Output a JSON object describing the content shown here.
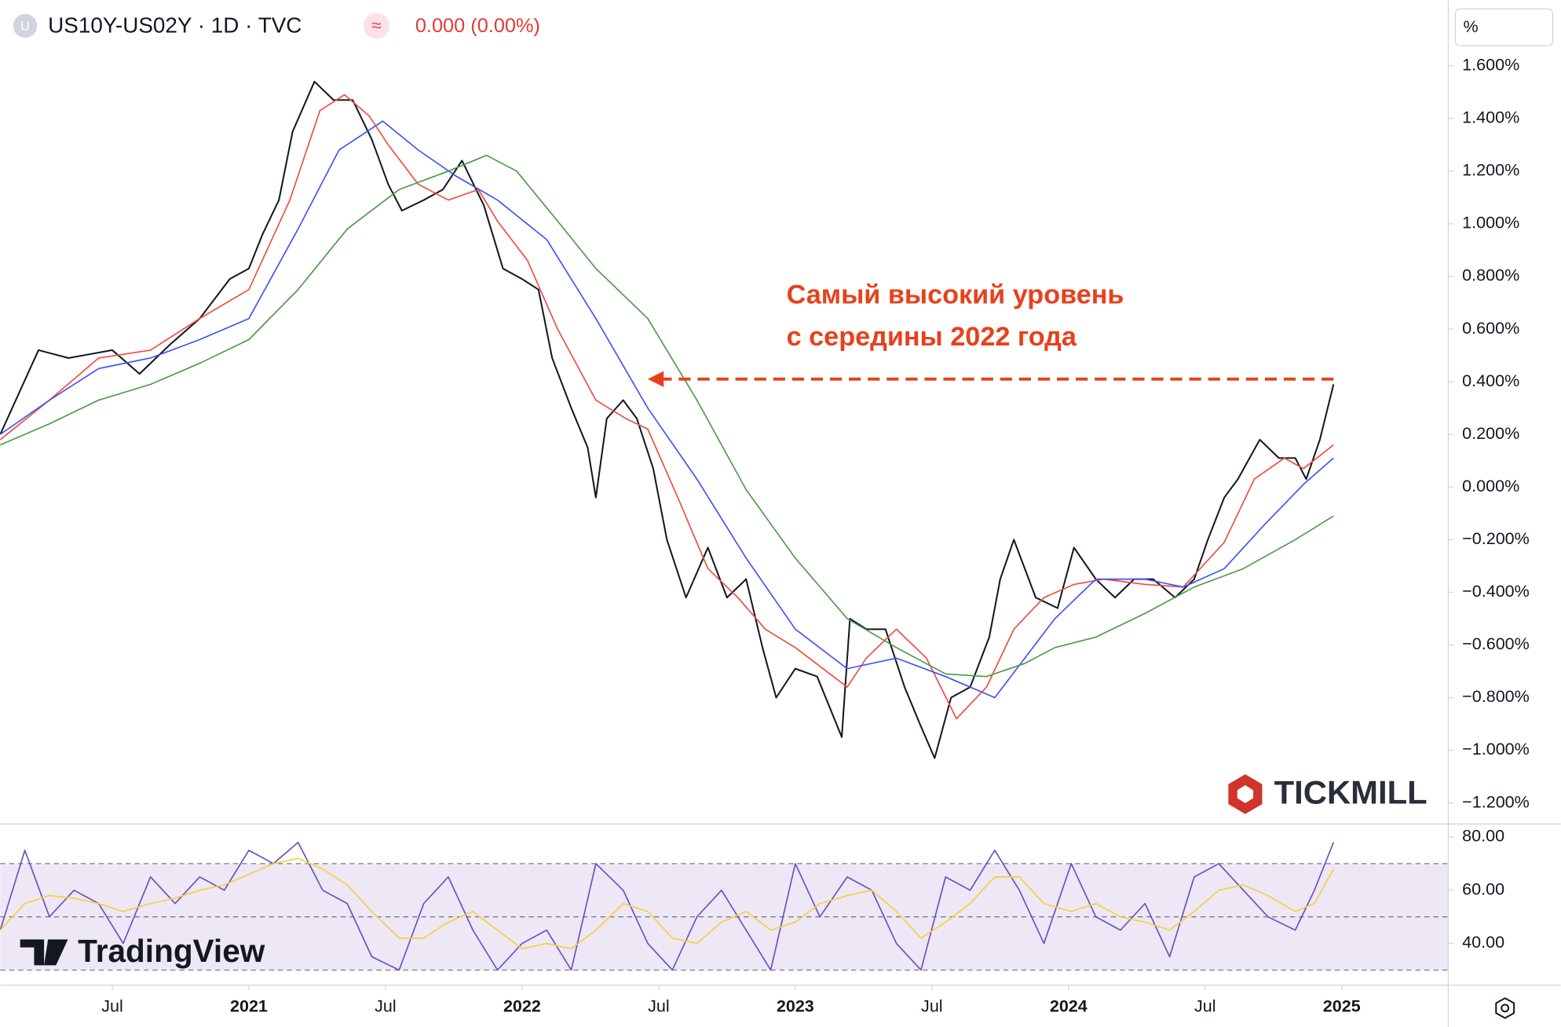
{
  "header": {
    "icon": "U",
    "symbol_icon": "≈"
  },
  "chart_data": [
    {
      "type": "line",
      "title": "US10Y-US02Y · 1D · TVC",
      "change": "0.000 (0.00%)",
      "y_label": "%",
      "xlim": [
        2020.09,
        2025.39
      ],
      "ylim": [
        -1.28,
        1.85
      ],
      "xticks": [
        {
          "value": 2020.5,
          "label": "Jul"
        },
        2021,
        {
          "value": 2021.5,
          "label": "Jul"
        },
        2022,
        {
          "value": 2022.5,
          "label": "Jul"
        },
        2023,
        {
          "value": 2023.5,
          "label": "Jul"
        },
        2024,
        {
          "value": 2024.5,
          "label": "Jul"
        },
        2025
      ],
      "yticks": [
        {
          "value": 1.6,
          "label": "1.600%"
        },
        {
          "value": 1.4,
          "label": "1.400%"
        },
        {
          "value": 1.2,
          "label": "1.200%"
        },
        {
          "value": 1.0,
          "label": "1.000%"
        },
        {
          "value": 0.8,
          "label": "0.800%"
        },
        {
          "value": 0.6,
          "label": "0.600%"
        },
        {
          "value": 0.4,
          "label": "0.400%"
        },
        {
          "value": 0.2,
          "label": "0.200%"
        },
        {
          "value": 0,
          "label": "0.000%"
        },
        {
          "value": -0.2,
          "label": "−0.200%"
        },
        {
          "value": -0.4,
          "label": "−0.400%"
        },
        {
          "value": -0.6,
          "label": "−0.600%"
        },
        {
          "value": -0.8,
          "label": "−0.800%"
        },
        {
          "value": -1.0,
          "label": "−1.000%"
        },
        {
          "value": -1.2,
          "label": "−1.200%"
        }
      ],
      "grid": false,
      "series": [
        {
          "color": "#131722",
          "width": 1.6,
          "x": [
            2020.09,
            2020.23,
            2020.34,
            2020.5,
            2020.6,
            2020.71,
            2020.82,
            2020.93,
            2021.0,
            2021.05,
            2021.11,
            2021.16,
            2021.24,
            2021.31,
            2021.38,
            2021.45,
            2021.51,
            2021.56,
            2021.64,
            2021.71,
            2021.78,
            2021.86,
            2021.93,
            2022.0,
            2022.06,
            2022.11,
            2022.18,
            2022.24,
            2022.27,
            2022.31,
            2022.37,
            2022.42,
            2022.48,
            2022.53,
            2022.6,
            2022.68,
            2022.75,
            2022.82,
            2022.88,
            2022.93,
            2023.0,
            2023.08,
            2023.17,
            2023.2,
            2023.26,
            2023.33,
            2023.4,
            2023.46,
            2023.51,
            2023.57,
            2023.64,
            2023.71,
            2023.75,
            2023.8,
            2023.88,
            2023.96,
            2024.02,
            2024.1,
            2024.17,
            2024.24,
            2024.31,
            2024.39,
            2024.46,
            2024.51,
            2024.57,
            2024.62,
            2024.7,
            2024.77,
            2024.83,
            2024.87,
            2024.92,
            2024.97
          ],
          "values": [
            0.2,
            0.52,
            0.49,
            0.52,
            0.43,
            0.54,
            0.64,
            0.79,
            0.83,
            0.96,
            1.09,
            1.35,
            1.54,
            1.47,
            1.47,
            1.32,
            1.15,
            1.05,
            1.09,
            1.13,
            1.24,
            1.07,
            0.83,
            0.79,
            0.75,
            0.49,
            0.3,
            0.15,
            -0.04,
            0.26,
            0.33,
            0.26,
            0.07,
            -0.2,
            -0.42,
            -0.23,
            -0.42,
            -0.35,
            -0.61,
            -0.8,
            -0.69,
            -0.72,
            -0.95,
            -0.5,
            -0.54,
            -0.54,
            -0.76,
            -0.91,
            -1.03,
            -0.8,
            -0.76,
            -0.57,
            -0.35,
            -0.2,
            -0.42,
            -0.46,
            -0.23,
            -0.35,
            -0.42,
            -0.35,
            -0.35,
            -0.42,
            -0.35,
            -0.2,
            -0.04,
            0.03,
            0.18,
            0.11,
            0.11,
            0.03,
            0.18,
            0.39
          ]
        },
        {
          "color": "#ef4b3f",
          "width": 1.3,
          "x": [
            2020.09,
            2020.27,
            2020.45,
            2020.64,
            2020.82,
            2021.0,
            2021.15,
            2021.26,
            2021.35,
            2021.44,
            2021.51,
            2021.62,
            2021.73,
            2021.84,
            2021.91,
            2022.02,
            2022.13,
            2022.27,
            2022.38,
            2022.46,
            2022.57,
            2022.68,
            2022.79,
            2022.89,
            2023.0,
            2023.19,
            2023.26,
            2023.37,
            2023.48,
            2023.59,
            2023.7,
            2023.8,
            2023.91,
            2024.02,
            2024.13,
            2024.28,
            2024.42,
            2024.57,
            2024.68,
            2024.79,
            2024.86,
            2024.97
          ],
          "values": [
            0.18,
            0.33,
            0.49,
            0.52,
            0.64,
            0.75,
            1.09,
            1.43,
            1.49,
            1.41,
            1.3,
            1.15,
            1.09,
            1.13,
            1.01,
            0.86,
            0.6,
            0.33,
            0.26,
            0.22,
            -0.04,
            -0.31,
            -0.42,
            -0.54,
            -0.61,
            -0.76,
            -0.65,
            -0.54,
            -0.65,
            -0.88,
            -0.76,
            -0.54,
            -0.42,
            -0.37,
            -0.35,
            -0.37,
            -0.38,
            -0.21,
            0.03,
            0.11,
            0.07,
            0.16
          ]
        },
        {
          "color": "#3f51f5",
          "width": 1.3,
          "x": [
            2020.09,
            2020.27,
            2020.45,
            2020.64,
            2020.82,
            2021.0,
            2021.18,
            2021.33,
            2021.49,
            2021.62,
            2021.76,
            2021.91,
            2022.09,
            2022.27,
            2022.46,
            2022.64,
            2022.82,
            2023.0,
            2023.19,
            2023.37,
            2023.55,
            2023.73,
            2023.84,
            2023.95,
            2024.1,
            2024.28,
            2024.42,
            2024.57,
            2024.72,
            2024.86,
            2024.97
          ],
          "values": [
            0.2,
            0.33,
            0.45,
            0.49,
            0.56,
            0.64,
            0.98,
            1.28,
            1.39,
            1.28,
            1.18,
            1.09,
            0.94,
            0.64,
            0.3,
            0.03,
            -0.27,
            -0.54,
            -0.69,
            -0.65,
            -0.72,
            -0.8,
            -0.65,
            -0.5,
            -0.35,
            -0.35,
            -0.38,
            -0.31,
            -0.14,
            0.01,
            0.11
          ]
        },
        {
          "color": "#4c9a45",
          "width": 1.3,
          "x": [
            2020.09,
            2020.27,
            2020.45,
            2020.64,
            2020.82,
            2021.0,
            2021.18,
            2021.36,
            2021.55,
            2021.73,
            2021.87,
            2021.98,
            2022.13,
            2022.27,
            2022.46,
            2022.64,
            2022.82,
            2023.0,
            2023.19,
            2023.37,
            2023.55,
            2023.7,
            2023.84,
            2023.95,
            2024.1,
            2024.28,
            2024.46,
            2024.64,
            2024.83,
            2024.97
          ],
          "values": [
            0.16,
            0.24,
            0.33,
            0.39,
            0.47,
            0.56,
            0.75,
            0.98,
            1.13,
            1.2,
            1.26,
            1.2,
            1.01,
            0.83,
            0.64,
            0.33,
            -0.01,
            -0.27,
            -0.5,
            -0.61,
            -0.71,
            -0.72,
            -0.67,
            -0.61,
            -0.57,
            -0.48,
            -0.38,
            -0.31,
            -0.2,
            -0.11
          ]
        }
      ],
      "annotation": {
        "text": [
          "Самый высокий уровень",
          "с середины 2022 года"
        ],
        "color": "#e8401c",
        "level": 0.41,
        "from": 2024.97,
        "to": 2022.46
      }
    },
    {
      "type": "line",
      "ylim": [
        24.3,
        84.9
      ],
      "yticks": [
        {
          "value": 80,
          "label": "80.00"
        },
        {
          "value": 60,
          "label": "60.00"
        },
        {
          "value": 40,
          "label": "40.00"
        }
      ],
      "levels": [
        70,
        50,
        30
      ],
      "band_color": "#ede7f6",
      "x": [
        2020.09,
        2020.18,
        2020.27,
        2020.36,
        2020.45,
        2020.54,
        2020.64,
        2020.73,
        2020.82,
        2020.91,
        2021.0,
        2021.09,
        2021.18,
        2021.27,
        2021.36,
        2021.45,
        2021.55,
        2021.64,
        2021.73,
        2021.82,
        2021.91,
        2022.0,
        2022.09,
        2022.18,
        2022.27,
        2022.37,
        2022.46,
        2022.55,
        2022.64,
        2022.73,
        2022.82,
        2022.91,
        2023.0,
        2023.09,
        2023.19,
        2023.28,
        2023.37,
        2023.46,
        2023.55,
        2023.64,
        2023.73,
        2023.82,
        2023.91,
        2024.01,
        2024.1,
        2024.19,
        2024.28,
        2024.37,
        2024.46,
        2024.55,
        2024.64,
        2024.73,
        2024.83,
        2024.9,
        2024.97
      ],
      "series": [
        {
          "color": "#6a4fbf",
          "width": 1.3,
          "values": [
            45,
            75,
            50,
            60,
            55,
            40,
            65,
            55,
            65,
            60,
            75,
            70,
            78,
            60,
            55,
            35,
            30,
            55,
            65,
            45,
            30,
            40,
            45,
            30,
            70,
            60,
            40,
            30,
            50,
            60,
            45,
            30,
            70,
            50,
            65,
            60,
            40,
            30,
            65,
            60,
            75,
            60,
            40,
            70,
            50,
            45,
            55,
            35,
            65,
            70,
            60,
            50,
            45,
            60,
            78
          ]
        },
        {
          "color": "#f2d33a",
          "width": 1.3,
          "values": [
            45,
            55,
            58,
            57,
            55,
            52,
            55,
            57,
            60,
            62,
            66,
            70,
            72,
            68,
            62,
            52,
            42,
            42,
            48,
            52,
            45,
            38,
            40,
            38,
            45,
            55,
            52,
            42,
            40,
            48,
            52,
            45,
            48,
            55,
            58,
            60,
            52,
            42,
            48,
            55,
            65,
            65,
            55,
            52,
            55,
            50,
            48,
            45,
            52,
            60,
            62,
            58,
            52,
            55,
            68
          ]
        }
      ]
    }
  ],
  "watermarks": {
    "broker": "TICKMILL",
    "platform": "TradingView"
  }
}
